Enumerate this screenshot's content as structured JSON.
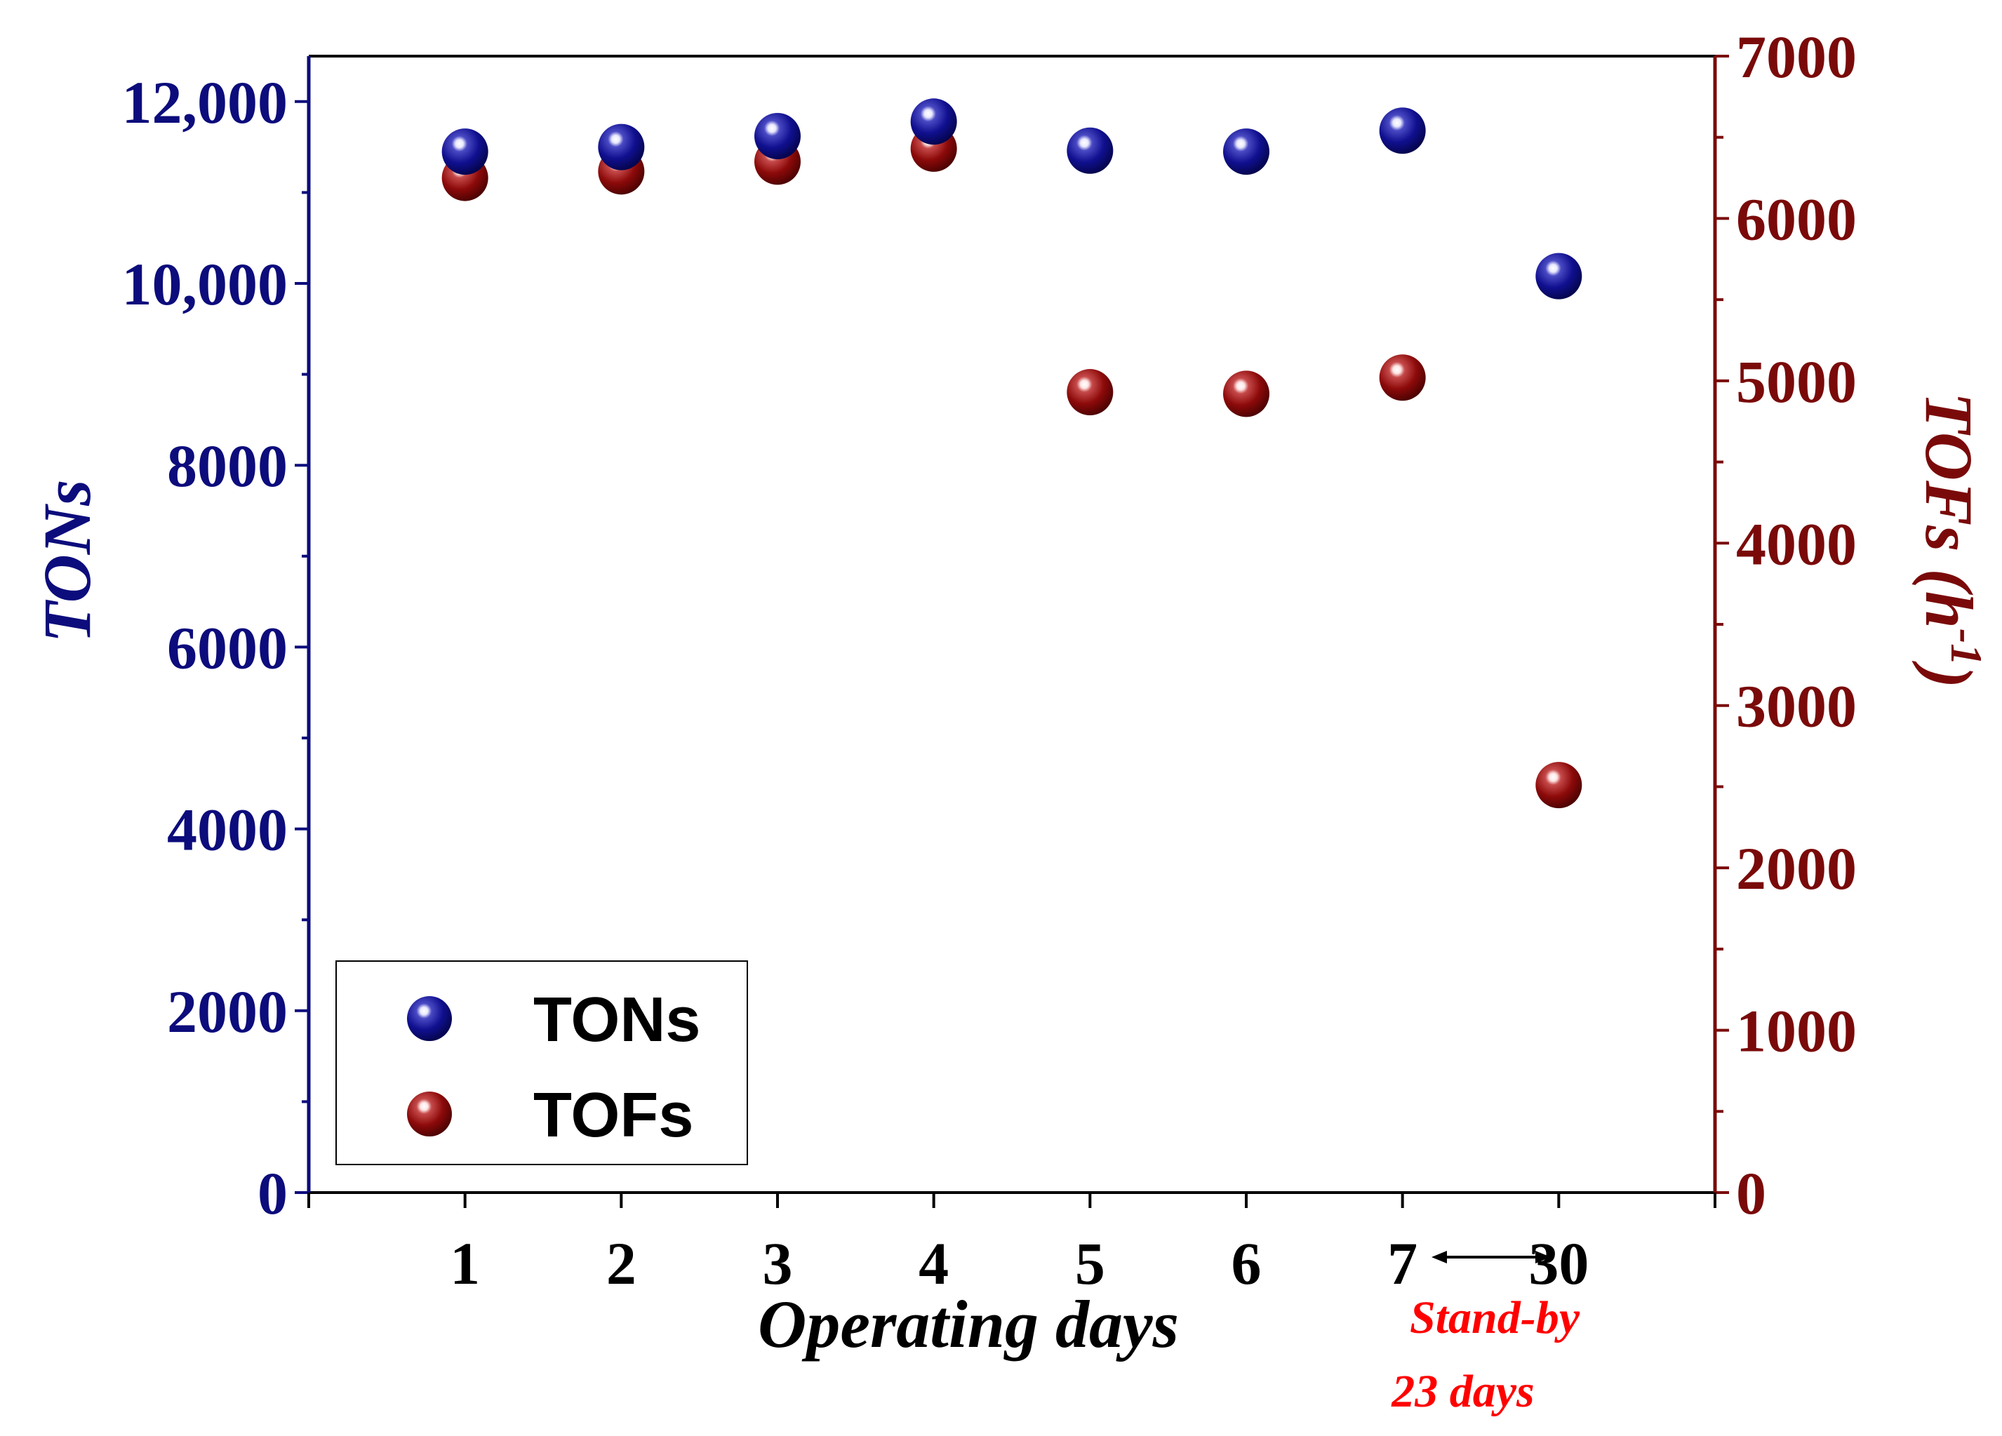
{
  "chart_data": {
    "type": "scatter",
    "categories": [
      "1",
      "2",
      "3",
      "4",
      "5",
      "6",
      "7",
      "30"
    ],
    "x_positions": [
      1,
      2,
      3,
      4,
      5,
      6,
      7,
      8
    ],
    "xlabel": "Operating days",
    "ylabel": "TONs",
    "y2label": "TOFs (h",
    "y2label_sup": "-1",
    "y2label_close": ")",
    "xlim": [
      0,
      9
    ],
    "ylim": [
      0,
      12500
    ],
    "y2lim": [
      0,
      7000
    ],
    "yticks": [
      0,
      2000,
      4000,
      6000,
      8000,
      10000,
      12000
    ],
    "ytick_labels": [
      "0",
      "2000",
      "4000",
      "6000",
      "8000",
      "10,000",
      "12,000"
    ],
    "y2ticks": [
      0,
      1000,
      2000,
      3000,
      4000,
      5000,
      6000,
      7000
    ],
    "y2tick_labels": [
      "0",
      "1000",
      "2000",
      "3000",
      "4000",
      "5000",
      "6000",
      "7000"
    ],
    "grid": false,
    "legend_position": "bottom-left",
    "series": [
      {
        "name": "TONs",
        "axis": "left",
        "color": "#0c0c7c",
        "values": [
          11450,
          11500,
          11620,
          11780,
          11460,
          11450,
          11680,
          10080
        ]
      },
      {
        "name": "TOFs",
        "axis": "right",
        "color": "#8b0a0a",
        "values": [
          6250,
          6290,
          6350,
          6430,
          4930,
          4920,
          5020,
          2510
        ]
      }
    ],
    "annotations": {
      "arrow_between": [
        "7",
        "30"
      ],
      "standby_line1": "Stand-by",
      "standby_line2": "23 days"
    }
  }
}
